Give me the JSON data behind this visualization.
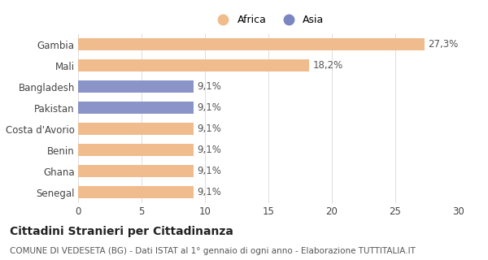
{
  "categories": [
    "Gambia",
    "Mali",
    "Bangladesh",
    "Pakistan",
    "Costa d'Avorio",
    "Benin",
    "Ghana",
    "Senegal"
  ],
  "values": [
    27.3,
    18.2,
    9.1,
    9.1,
    9.1,
    9.1,
    9.1,
    9.1
  ],
  "colors": [
    "#f0bc8e",
    "#f0bc8e",
    "#8a94c8",
    "#8a94c8",
    "#f0bc8e",
    "#f0bc8e",
    "#f0bc8e",
    "#f0bc8e"
  ],
  "labels": [
    "27,3%",
    "18,2%",
    "9,1%",
    "9,1%",
    "9,1%",
    "9,1%",
    "9,1%",
    "9,1%"
  ],
  "africa_color": "#f0bc8c",
  "asia_color": "#7b85c0",
  "xlim": [
    0,
    30
  ],
  "xticks": [
    0,
    5,
    10,
    15,
    20,
    25,
    30
  ],
  "title": "Cittadini Stranieri per Cittadinanza",
  "subtitle": "COMUNE DI VEDESETA (BG) - Dati ISTAT al 1° gennaio di ogni anno - Elaborazione TUTTITALIA.IT",
  "legend_africa": "Africa",
  "legend_asia": "Asia",
  "bg_color": "#ffffff",
  "bar_height": 0.55,
  "label_fontsize": 8.5,
  "tick_fontsize": 8.5,
  "title_fontsize": 10,
  "subtitle_fontsize": 7.5
}
